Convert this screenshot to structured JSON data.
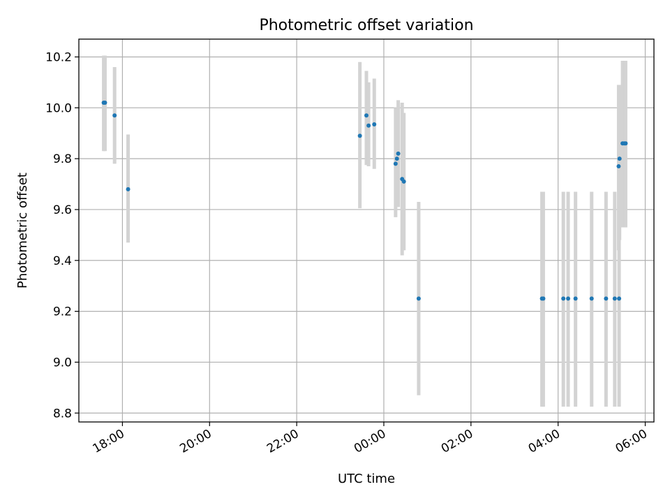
{
  "chart_data": {
    "type": "scatter",
    "title": "Photometric offset variation",
    "xlabel": "UTC time",
    "ylabel": "Photometric offset",
    "x_unit": "hours since 00:00 UTC",
    "xlim": [
      -7.0,
      6.2
    ],
    "ylim": [
      8.765,
      10.27
    ],
    "grid": true,
    "xticks": [
      {
        "value": -6,
        "label": "18:00"
      },
      {
        "value": -4,
        "label": "20:00"
      },
      {
        "value": -2,
        "label": "22:00"
      },
      {
        "value": 0,
        "label": "00:00"
      },
      {
        "value": 2,
        "label": "02:00"
      },
      {
        "value": 4,
        "label": "04:00"
      },
      {
        "value": 6,
        "label": "06:00"
      }
    ],
    "yticks": [
      {
        "value": 8.8,
        "label": "8.8"
      },
      {
        "value": 9.0,
        "label": "9.0"
      },
      {
        "value": 9.2,
        "label": "9.2"
      },
      {
        "value": 9.4,
        "label": "9.4"
      },
      {
        "value": 9.6,
        "label": "9.6"
      },
      {
        "value": 9.8,
        "label": "9.8"
      },
      {
        "value": 10.0,
        "label": "10.0"
      },
      {
        "value": 10.2,
        "label": "10.2"
      }
    ],
    "point_color": "#1f77b4",
    "errorbar_color": "#d3d3d3",
    "points": [
      {
        "x": -6.43,
        "y": 10.02,
        "lo": 9.83,
        "hi": 10.205
      },
      {
        "x": -6.4,
        "y": 10.02,
        "lo": 9.83,
        "hi": 10.205
      },
      {
        "x": -6.18,
        "y": 9.97,
        "lo": 9.78,
        "hi": 10.16
      },
      {
        "x": -5.87,
        "y": 9.68,
        "lo": 9.47,
        "hi": 9.895
      },
      {
        "x": -0.55,
        "y": 9.89,
        "lo": 9.605,
        "hi": 10.18
      },
      {
        "x": -0.4,
        "y": 9.97,
        "lo": 9.775,
        "hi": 10.145
      },
      {
        "x": -0.35,
        "y": 9.93,
        "lo": 9.77,
        "hi": 10.1
      },
      {
        "x": -0.22,
        "y": 9.935,
        "lo": 9.76,
        "hi": 10.115
      },
      {
        "x": 0.27,
        "y": 9.78,
        "lo": 9.57,
        "hi": 10.0
      },
      {
        "x": 0.3,
        "y": 9.8,
        "lo": 9.62,
        "hi": 9.98
      },
      {
        "x": 0.33,
        "y": 9.82,
        "lo": 9.61,
        "hi": 10.03
      },
      {
        "x": 0.42,
        "y": 9.72,
        "lo": 9.42,
        "hi": 10.02
      },
      {
        "x": 0.46,
        "y": 9.71,
        "lo": 9.44,
        "hi": 9.98
      },
      {
        "x": 0.8,
        "y": 9.25,
        "lo": 8.87,
        "hi": 9.63
      },
      {
        "x": 3.63,
        "y": 9.25,
        "lo": 8.825,
        "hi": 9.67
      },
      {
        "x": 3.66,
        "y": 9.25,
        "lo": 8.825,
        "hi": 9.67
      },
      {
        "x": 4.12,
        "y": 9.25,
        "lo": 8.825,
        "hi": 9.67
      },
      {
        "x": 4.23,
        "y": 9.25,
        "lo": 8.825,
        "hi": 9.67
      },
      {
        "x": 4.4,
        "y": 9.25,
        "lo": 8.825,
        "hi": 9.67
      },
      {
        "x": 4.77,
        "y": 9.25,
        "lo": 8.825,
        "hi": 9.67
      },
      {
        "x": 5.1,
        "y": 9.25,
        "lo": 8.825,
        "hi": 9.67
      },
      {
        "x": 5.3,
        "y": 9.25,
        "lo": 8.825,
        "hi": 9.67
      },
      {
        "x": 5.4,
        "y": 9.25,
        "lo": 8.825,
        "hi": 9.67
      },
      {
        "x": 5.39,
        "y": 9.77,
        "lo": 9.44,
        "hi": 10.09
      },
      {
        "x": 5.41,
        "y": 9.8,
        "lo": 9.48,
        "hi": 10.09
      },
      {
        "x": 5.48,
        "y": 9.86,
        "lo": 9.53,
        "hi": 10.185
      },
      {
        "x": 5.52,
        "y": 9.86,
        "lo": 9.53,
        "hi": 10.185
      },
      {
        "x": 5.55,
        "y": 9.86,
        "lo": 9.53,
        "hi": 10.185
      }
    ]
  }
}
